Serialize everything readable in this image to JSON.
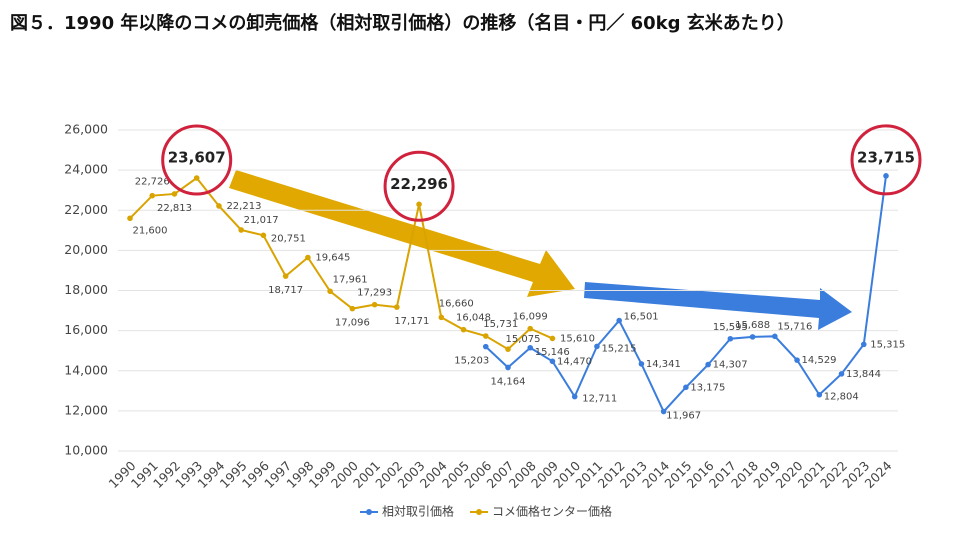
{
  "chart_data": {
    "type": "line",
    "title": "図５．1990 年以降のコメの卸売価格（相対取引価格）の推移（名目・円／ 60kg 玄米あたり）",
    "categories": [
      "1990",
      "1991",
      "1992",
      "1993",
      "1994",
      "1995",
      "1996",
      "1997",
      "1998",
      "1999",
      "2000",
      "2001",
      "2002",
      "2003",
      "2004",
      "2005",
      "2006",
      "2007",
      "2008",
      "2009",
      "2010",
      "2011",
      "2012",
      "2013",
      "2014",
      "2015",
      "2016",
      "2017",
      "2018",
      "2019",
      "2020",
      "2021",
      "2022",
      "2023",
      "2024"
    ],
    "series": [
      {
        "name": "相対取引価格",
        "color": "#3b7ddd",
        "values": [
          null,
          null,
          null,
          null,
          null,
          null,
          null,
          null,
          null,
          null,
          null,
          null,
          null,
          null,
          null,
          null,
          15203,
          14164,
          15146,
          14470,
          12711,
          15215,
          16501,
          14341,
          11967,
          13175,
          14307,
          15595,
          15688,
          15716,
          14529,
          12804,
          13844,
          15315,
          23715
        ],
        "value_labels": [
          null,
          null,
          null,
          null,
          null,
          null,
          null,
          null,
          null,
          null,
          null,
          null,
          null,
          null,
          null,
          null,
          "15,203",
          "14,164",
          "15,146",
          "14,470",
          "12,711",
          "15,215",
          "16,501",
          "14,341",
          "11,967",
          "13,175",
          "14,307",
          "15,595",
          "15,688",
          "15,716",
          "14,529",
          "12,804",
          "13,844",
          "15,315",
          "23,715"
        ]
      },
      {
        "name": "コメ価格センター価格",
        "color": "#d9a300",
        "values": [
          21600,
          22726,
          22813,
          23607,
          22213,
          21017,
          20751,
          18717,
          19645,
          17961,
          17096,
          17293,
          17171,
          22296,
          16660,
          16048,
          15731,
          15075,
          16099,
          15610,
          null,
          null,
          null,
          null,
          null,
          null,
          null,
          null,
          null,
          null,
          null,
          null,
          null,
          null,
          null
        ],
        "value_labels": [
          "21,600",
          "22,726",
          "22,813",
          "23,607",
          "22,213",
          "21,017",
          "20,751",
          "18,717",
          "19,645",
          "17,961",
          "17,096",
          "17,293",
          "17,171",
          "22,296",
          "16,660",
          "16,048",
          "15,731",
          "15,075",
          "16,099",
          "15,610",
          null,
          null,
          null,
          null,
          null,
          null,
          null,
          null,
          null,
          null,
          null,
          null,
          null,
          null,
          null
        ]
      }
    ],
    "ylim": [
      10000,
      26000
    ],
    "yticks": [
      {
        "value": 10000,
        "label": "10,000"
      },
      {
        "value": 12000,
        "label": "12,000"
      },
      {
        "value": 14000,
        "label": "14,000"
      },
      {
        "value": 16000,
        "label": "16,000"
      },
      {
        "value": 18000,
        "label": "18,000"
      },
      {
        "value": 20000,
        "label": "20,000"
      },
      {
        "value": 22000,
        "label": "22,000"
      },
      {
        "value": 24000,
        "label": "24,000"
      },
      {
        "value": 26000,
        "label": "26,000"
      }
    ],
    "grid": true,
    "legend": "bottom"
  }
}
